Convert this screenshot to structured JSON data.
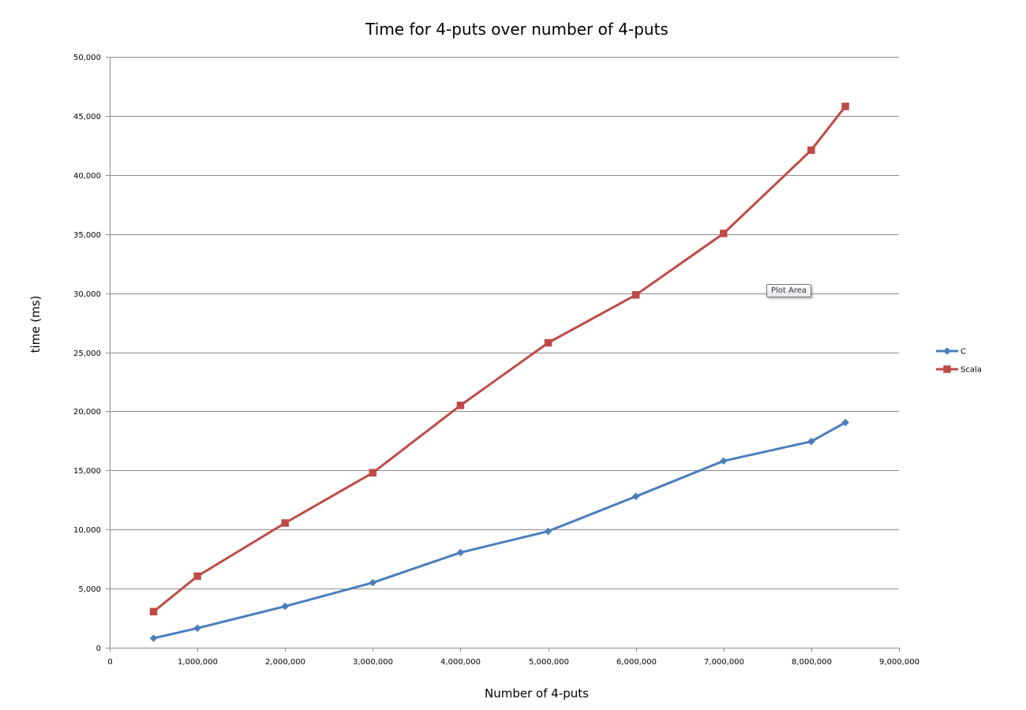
{
  "tooltip": {
    "text": "Plot Area"
  },
  "chart_data": {
    "type": "line",
    "title": "Time for 4-puts over number of 4-puts",
    "xlabel": "Number of 4-puts",
    "ylabel": "time (ms)",
    "xlim": [
      0,
      9000000
    ],
    "ylim": [
      0,
      50000
    ],
    "x_ticks": [
      "0",
      "1,000,000",
      "2,000,000",
      "3,000,000",
      "4,000,000",
      "5,000,000",
      "6,000,000",
      "7,000,000",
      "8,000,000",
      "9,000,000"
    ],
    "y_ticks": [
      "0",
      "5,000",
      "10,000",
      "15,000",
      "20,000",
      "25,000",
      "30,000",
      "35,000",
      "40,000",
      "45,000",
      "50,000"
    ],
    "grid": "horizontal",
    "legend_position": "right",
    "series": [
      {
        "name": "C",
        "color": "#4a7ebb",
        "marker": "diamond",
        "points": [
          [
            500000,
            800
          ],
          [
            1000000,
            1650
          ],
          [
            2000000,
            3500
          ],
          [
            3000000,
            5500
          ],
          [
            4000000,
            8050
          ],
          [
            5000000,
            9850
          ],
          [
            6000000,
            12800
          ],
          [
            7000000,
            15800
          ],
          [
            8000000,
            17450
          ],
          [
            8388608,
            19050
          ]
        ]
      },
      {
        "name": "Scala",
        "color": "#be4b48",
        "marker": "square",
        "points": [
          [
            500000,
            3050
          ],
          [
            1000000,
            6050
          ],
          [
            2000000,
            10550
          ],
          [
            3000000,
            14800
          ],
          [
            4000000,
            20500
          ],
          [
            5000000,
            25800
          ],
          [
            6000000,
            29850
          ],
          [
            7000000,
            35050
          ],
          [
            8000000,
            42100
          ],
          [
            8388608,
            45800
          ]
        ]
      }
    ]
  }
}
